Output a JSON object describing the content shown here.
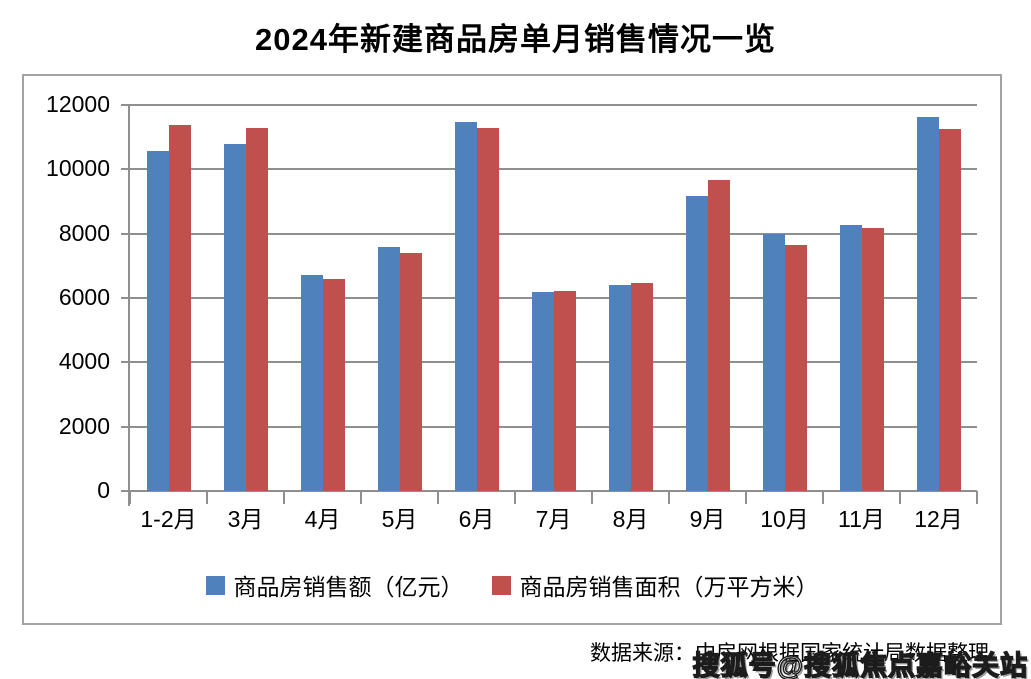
{
  "title": "2024年新建商品房单月销售情况一览",
  "chart_data": {
    "type": "bar",
    "title": "2024年新建商品房单月销售情况一览",
    "categories": [
      "1-2月",
      "3月",
      "4月",
      "5月",
      "6月",
      "7月",
      "8月",
      "9月",
      "10月",
      "11月",
      "12月"
    ],
    "series": [
      {
        "name": "商品房销售额（亿元）",
        "color": "#4F81BD",
        "values": [
          10566,
          10789,
          6712,
          7598,
          11468,
          6197,
          6393,
          9157,
          7975,
          8270,
          11625
        ]
      },
      {
        "name": "商品房销售面积（万平方米）",
        "color": "#C0504D",
        "values": [
          11369,
          11299,
          6584,
          7390,
          11274,
          6233,
          6453,
          9682,
          7646,
          8188,
          11267
        ]
      }
    ],
    "xlabel": "",
    "ylabel": "",
    "ylim": [
      0,
      12000
    ],
    "ytick_step": 2000,
    "ytick_labels": [
      "0",
      "2000",
      "4000",
      "6000",
      "8000",
      "10000",
      "12000"
    ],
    "grid": "horizontal",
    "legend_position": "bottom"
  },
  "footer": {
    "source": "数据来源：中房网根据国家统计局数据整理",
    "watermark": "搜狐号@搜狐焦点嘉峪关站"
  },
  "colors": {
    "series_blue": "#4F81BD",
    "series_red": "#C0504D",
    "gridline": "#8f8f8f",
    "frame_border": "#a3a3a3",
    "text": "#000000"
  }
}
